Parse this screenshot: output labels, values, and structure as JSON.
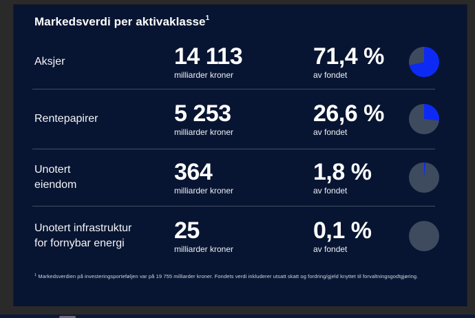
{
  "frame": {
    "bg": "#2a2a2a"
  },
  "card": {
    "bg": "#081532",
    "title": "Markedsverdi per aktivaklasse",
    "title_sup": "1"
  },
  "rows": [
    {
      "label": "Aksjer",
      "value": "14 113",
      "value_unit": "milliarder kroner",
      "pct": "71,4 %",
      "pct_unit": "av fondet",
      "pie_pct": 71.4
    },
    {
      "label": "Rentepapirer",
      "value": "5 253",
      "value_unit": "milliarder kroner",
      "pct": "26,6 %",
      "pct_unit": "av fondet",
      "pie_pct": 26.6
    },
    {
      "label": "Unotert\neiendom",
      "value": "364",
      "value_unit": "milliarder kroner",
      "pct": "1,8 %",
      "pct_unit": "av fondet",
      "pie_pct": 1.8
    },
    {
      "label": "Unotert infrastruktur\nfor fornybar energi",
      "value": "25",
      "value_unit": "milliarder kroner",
      "pct": "0,1 %",
      "pct_unit": "av fondet",
      "pie_pct": 0.1
    }
  ],
  "footnote": {
    "sup": "1",
    "text": " Markedsverdien på investeringsporteføljen var på 19 755 milliarder kroner. Fondets verdi inkluderer utsatt skatt og fordring/gjeld knyttet til forvaltningsgodtgjøring."
  },
  "colors": {
    "pie_fill": "#0d2af5",
    "pie_rest": "#3e4a5e",
    "divider": "#4e5a72",
    "card_bg": "#081532",
    "frame_bg": "#2a2a2a"
  },
  "chart_data": {
    "type": "pie",
    "title": "Markedsverdi per aktivaklasse",
    "categories": [
      "Aksjer",
      "Rentepapirer",
      "Unotert eiendom",
      "Unotert infrastruktur for fornybar energi"
    ],
    "series": [
      {
        "name": "Markedsverdi (milliarder kroner)",
        "values": [
          14113,
          5253,
          364,
          25
        ]
      },
      {
        "name": "Andel av fondet (%)",
        "values": [
          71.4,
          26.6,
          1.8,
          0.1
        ]
      }
    ],
    "legend_position": "none",
    "annotations": [
      "Markedsverdien på investeringsporteføljen var på 19 755 milliarder kroner. Fondets verdi inkluderer utsatt skatt og fordring/gjeld knyttet til forvaltningsgodtgjøring."
    ]
  }
}
